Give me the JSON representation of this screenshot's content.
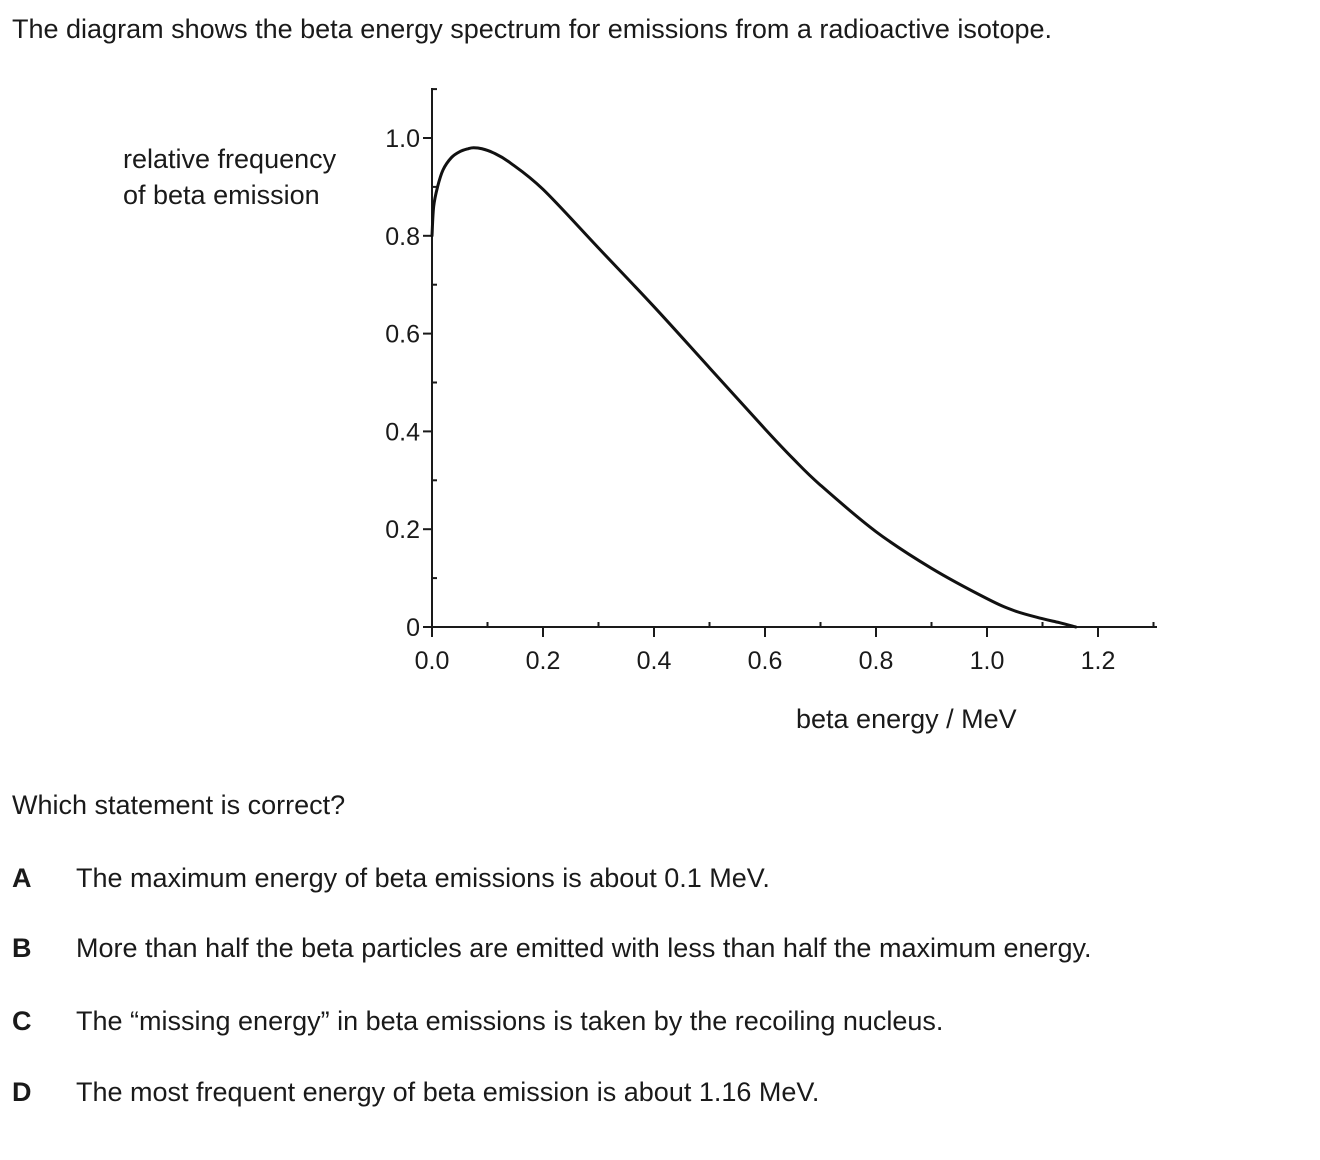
{
  "question": {
    "intro": "The diagram shows the beta energy spectrum for emissions from a radioactive isotope.",
    "prompt": "Which statement is correct?",
    "options": [
      {
        "letter": "A",
        "text": "The maximum energy of beta emissions is about 0.1 MeV."
      },
      {
        "letter": "B",
        "text": "More than half the beta particles are emitted with less than half the maximum energy."
      },
      {
        "letter": "C",
        "text": "The “missing energy” in beta emissions is taken by the recoiling nucleus."
      },
      {
        "letter": "D",
        "text": "The most frequent energy of beta emission is about 1.16 MeV."
      }
    ]
  },
  "chart_data": {
    "type": "line",
    "title": "",
    "xlabel": "beta energy / MeV",
    "ylabel_lines": [
      "relative frequency",
      "of beta emission"
    ],
    "xlim": [
      0,
      1.3
    ],
    "ylim": [
      0,
      1.1
    ],
    "xticks": [
      0.0,
      0.2,
      0.4,
      0.6,
      0.8,
      1.0,
      1.2
    ],
    "xtick_labels": [
      "0.0",
      "0.2",
      "0.4",
      "0.6",
      "0.8",
      "1.0",
      "1.2"
    ],
    "yticks": [
      0,
      0.2,
      0.4,
      0.6,
      0.8,
      1.0
    ],
    "ytick_labels": [
      "0",
      "0.2",
      "0.4",
      "0.6",
      "0.8",
      "1.0"
    ],
    "x_minor_step": 0.1,
    "y_minor_step": 0.1,
    "grid": false,
    "series": [
      {
        "name": "beta energy spectrum",
        "x": [
          0.0,
          0.003,
          0.01,
          0.02,
          0.035,
          0.05,
          0.065,
          0.075,
          0.09,
          0.11,
          0.14,
          0.2,
          0.3,
          0.4,
          0.5,
          0.6,
          0.65,
          0.7,
          0.8,
          0.9,
          1.0,
          1.05,
          1.1,
          1.13,
          1.16
        ],
        "y": [
          0.8,
          0.86,
          0.9,
          0.935,
          0.96,
          0.972,
          0.978,
          0.98,
          0.978,
          0.97,
          0.95,
          0.895,
          0.775,
          0.655,
          0.53,
          0.405,
          0.345,
          0.29,
          0.195,
          0.12,
          0.058,
          0.033,
          0.017,
          0.009,
          0.0
        ]
      }
    ]
  }
}
